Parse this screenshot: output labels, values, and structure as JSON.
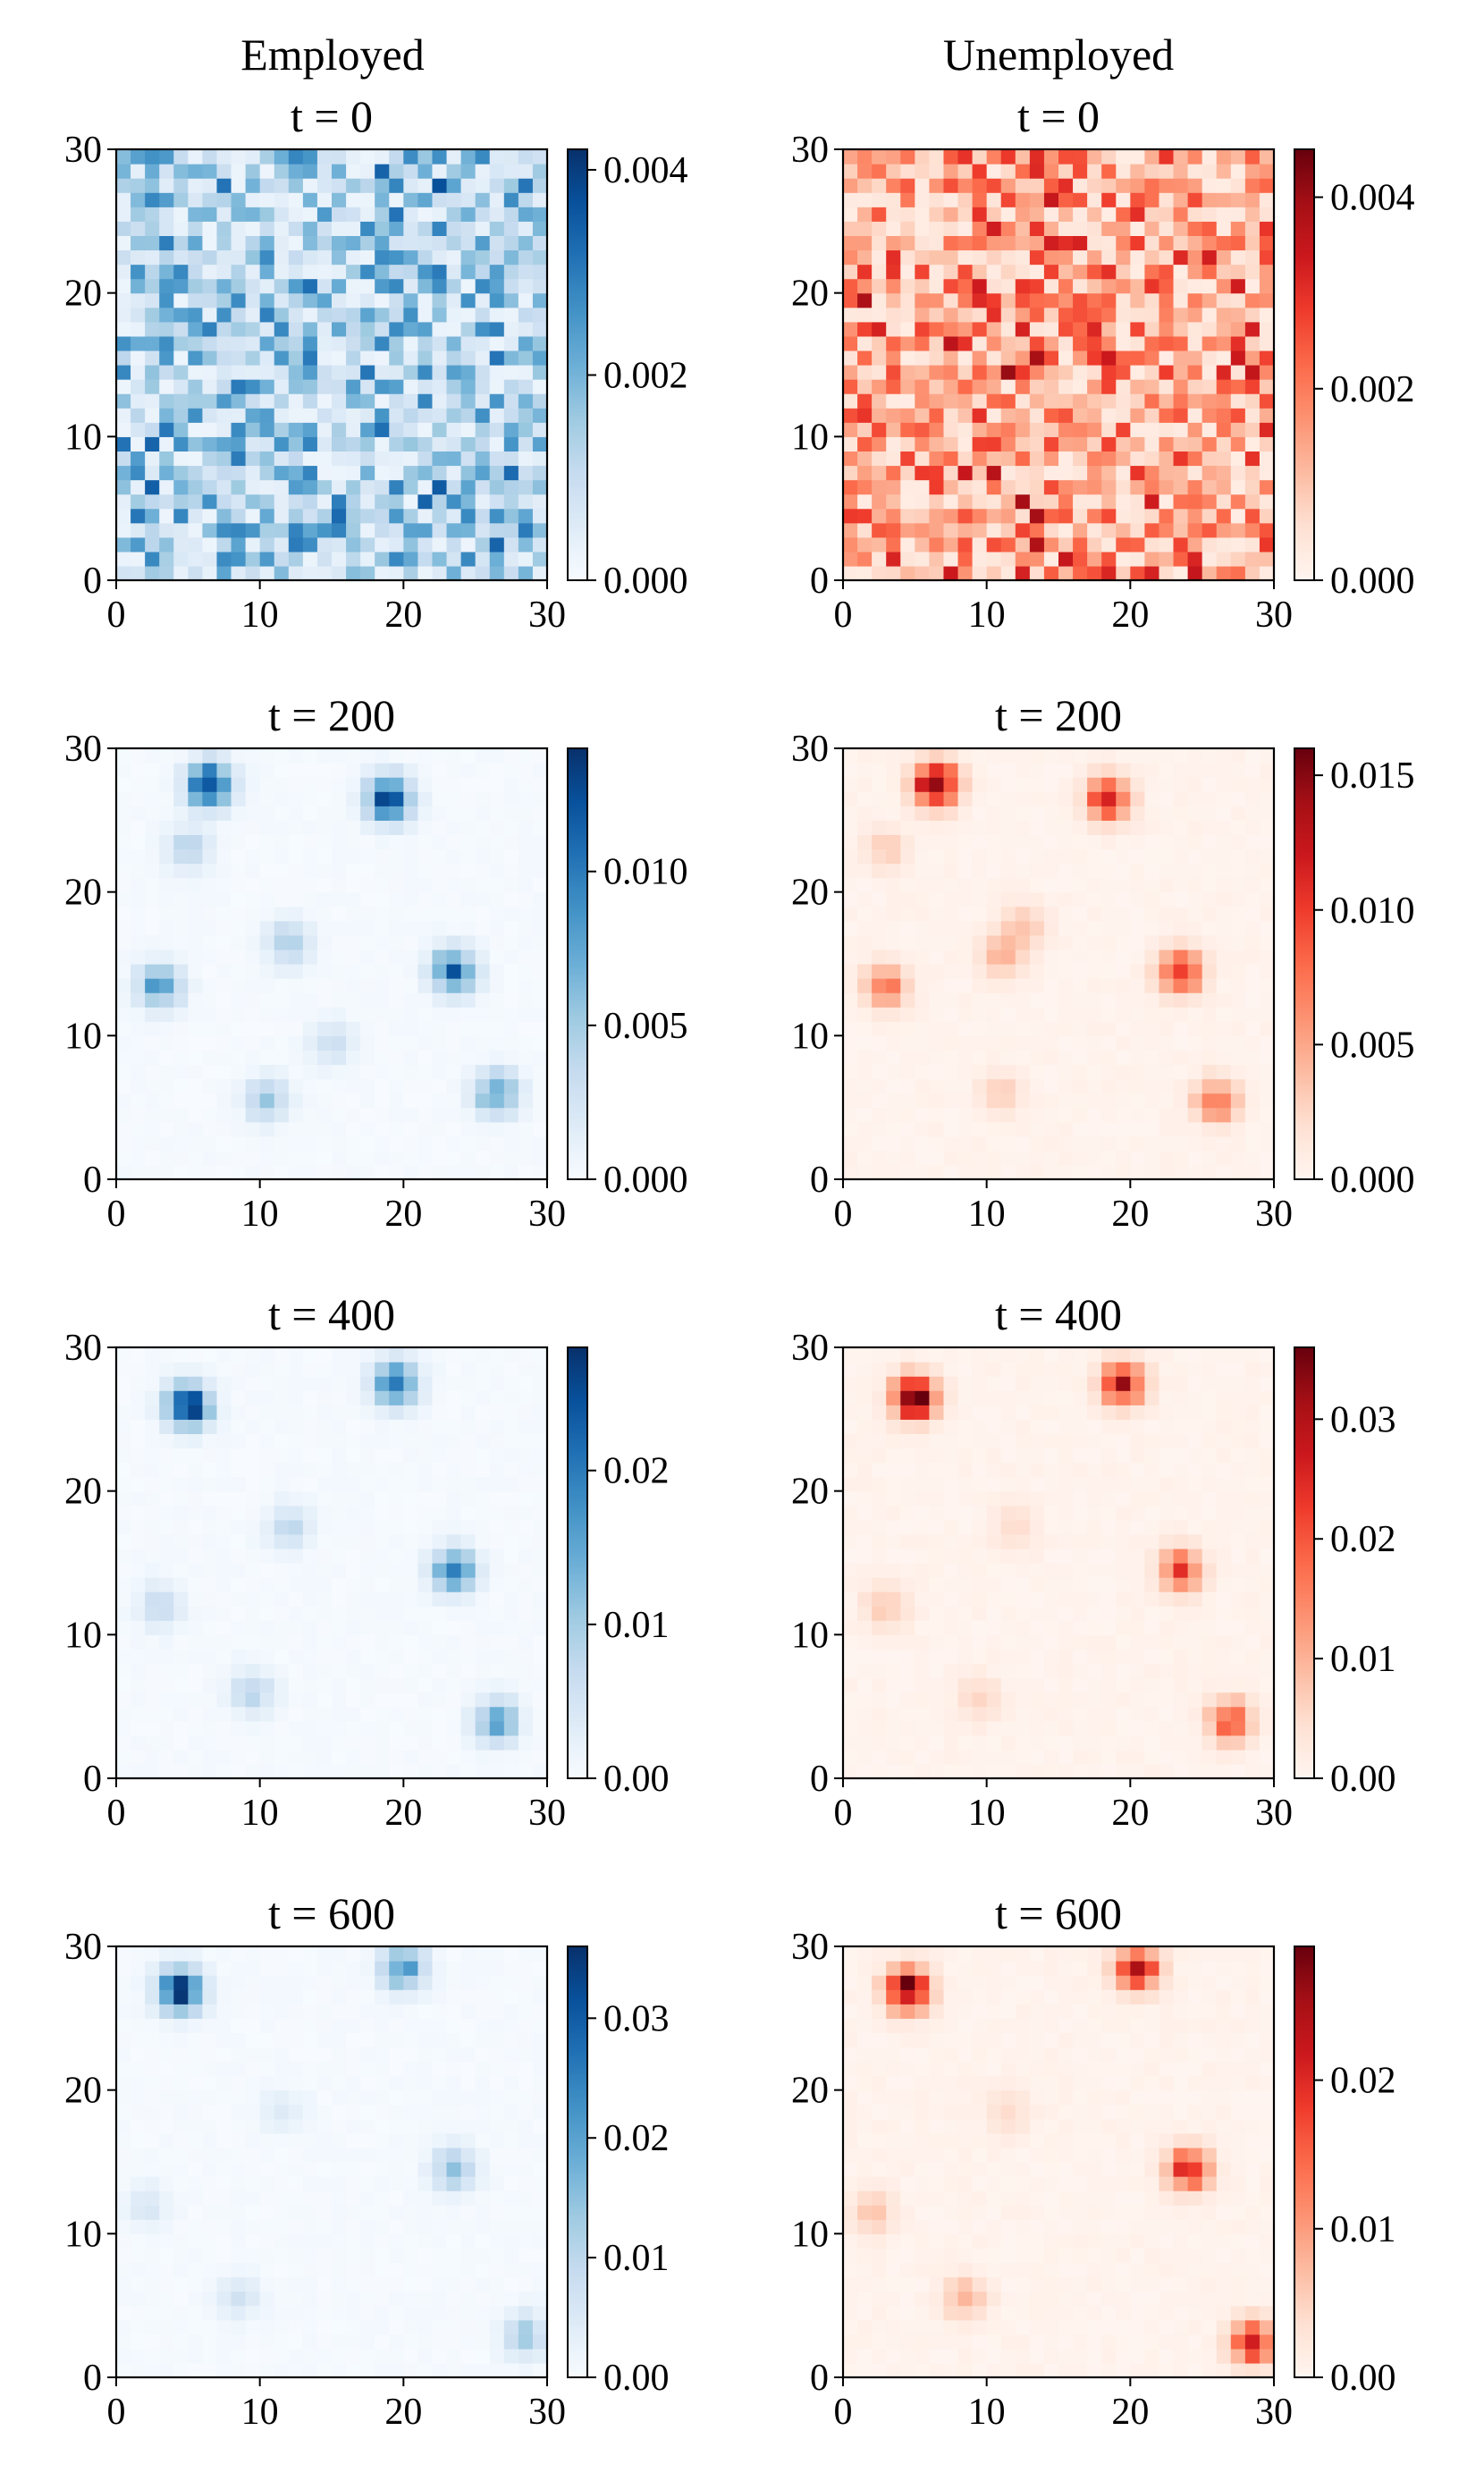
{
  "figure": {
    "column_titles": [
      "Employed",
      "Unemployed"
    ]
  },
  "chart_data": [
    {
      "type": "heatmap",
      "title": "Employed",
      "subtitle": "t = 0",
      "time": 0,
      "cmap": "Blues",
      "xlim": [
        0,
        30
      ],
      "ylim": [
        0,
        30
      ],
      "x_ticks": [
        0,
        10,
        20,
        30
      ],
      "y_ticks": [
        0,
        10,
        20,
        30
      ],
      "grid_size": 30,
      "colorbar": {
        "range": [
          0,
          0.0042
        ],
        "ticks": [
          0,
          0.002,
          0.004
        ],
        "tick_labels": [
          "0.000",
          "0.002",
          "0.004"
        ]
      },
      "pattern": "uniform-random",
      "clusters": []
    },
    {
      "type": "heatmap",
      "title": "Unemployed",
      "subtitle": "t = 0",
      "time": 0,
      "cmap": "Reds",
      "xlim": [
        0,
        30
      ],
      "ylim": [
        0,
        30
      ],
      "x_ticks": [
        0,
        10,
        20,
        30
      ],
      "y_ticks": [
        0,
        10,
        20,
        30
      ],
      "grid_size": 30,
      "colorbar": {
        "range": [
          0,
          0.0045
        ],
        "ticks": [
          0,
          0.002,
          0.004
        ],
        "tick_labels": [
          "0.000",
          "0.002",
          "0.004"
        ]
      },
      "pattern": "uniform-random",
      "clusters": []
    },
    {
      "type": "heatmap",
      "title": "",
      "subtitle": "t = 200",
      "time": 200,
      "cmap": "Blues",
      "xlim": [
        0,
        30
      ],
      "ylim": [
        0,
        30
      ],
      "x_ticks": [
        0,
        10,
        20,
        30
      ],
      "y_ticks": [
        0,
        10,
        20,
        30
      ],
      "grid_size": 30,
      "colorbar": {
        "range": [
          0,
          0.014
        ],
        "ticks": [
          0,
          0.005,
          0.01
        ],
        "tick_labels": [
          "0.000",
          "0.005",
          "0.010"
        ]
      },
      "pattern": "clusters",
      "clusters": [
        [
          6.5,
          27.5,
          0.014
        ],
        [
          19,
          26.5,
          0.014
        ],
        [
          23.5,
          14.5,
          0.011
        ],
        [
          3,
          13.5,
          0.008
        ],
        [
          26.5,
          6,
          0.008
        ],
        [
          10.5,
          5.5,
          0.005
        ],
        [
          12,
          16.5,
          0.005
        ],
        [
          5,
          23,
          0.004
        ],
        [
          15,
          9.5,
          0.003
        ]
      ]
    },
    {
      "type": "heatmap",
      "title": "",
      "subtitle": "t = 200",
      "time": 200,
      "cmap": "Reds",
      "xlim": [
        0,
        30
      ],
      "ylim": [
        0,
        30
      ],
      "x_ticks": [
        0,
        10,
        20,
        30
      ],
      "y_ticks": [
        0,
        10,
        20,
        30
      ],
      "grid_size": 30,
      "colorbar": {
        "range": [
          0,
          0.016
        ],
        "ticks": [
          0,
          0.005,
          0.01,
          0.015
        ],
        "tick_labels": [
          "0.000",
          "0.005",
          "0.010",
          "0.015"
        ]
      },
      "pattern": "clusters",
      "clusters": [
        [
          6.5,
          27.5,
          0.016
        ],
        [
          18.5,
          26.5,
          0.012
        ],
        [
          23.5,
          14.5,
          0.012
        ],
        [
          3,
          13.5,
          0.007
        ],
        [
          26,
          5.5,
          0.008
        ],
        [
          11,
          15.5,
          0.004
        ],
        [
          12.5,
          17.5,
          0.004
        ],
        [
          3,
          23,
          0.003
        ],
        [
          11,
          6,
          0.003
        ]
      ]
    },
    {
      "type": "heatmap",
      "title": "",
      "subtitle": "t = 400",
      "time": 400,
      "cmap": "Blues",
      "xlim": [
        0,
        30
      ],
      "ylim": [
        0,
        30
      ],
      "x_ticks": [
        0,
        10,
        20,
        30
      ],
      "y_ticks": [
        0,
        10,
        20,
        30
      ],
      "grid_size": 30,
      "colorbar": {
        "range": [
          0,
          0.028
        ],
        "ticks": [
          0,
          0.01,
          0.02
        ],
        "tick_labels": [
          "0.00",
          "0.01",
          "0.02"
        ]
      },
      "pattern": "clusters",
      "clusters": [
        [
          5,
          26,
          0.028
        ],
        [
          19.5,
          27.5,
          0.022
        ],
        [
          23.5,
          14.5,
          0.018
        ],
        [
          26.5,
          4,
          0.015
        ],
        [
          9.5,
          6,
          0.008
        ],
        [
          12,
          17.5,
          0.007
        ],
        [
          3,
          12,
          0.006
        ]
      ]
    },
    {
      "type": "heatmap",
      "title": "",
      "subtitle": "t = 400",
      "time": 400,
      "cmap": "Reds",
      "xlim": [
        0,
        30
      ],
      "ylim": [
        0,
        30
      ],
      "x_ticks": [
        0,
        10,
        20,
        30
      ],
      "y_ticks": [
        0,
        10,
        20,
        30
      ],
      "grid_size": 30,
      "colorbar": {
        "range": [
          0,
          0.036
        ],
        "ticks": [
          0,
          0.01,
          0.02,
          0.03
        ],
        "tick_labels": [
          "0.00",
          "0.01",
          "0.02",
          "0.03"
        ]
      },
      "pattern": "clusters",
      "clusters": [
        [
          5,
          26.5,
          0.036
        ],
        [
          19.5,
          27.5,
          0.028
        ],
        [
          23.5,
          14.5,
          0.022
        ],
        [
          27,
          4,
          0.02
        ],
        [
          9.5,
          5.5,
          0.006
        ],
        [
          12,
          17.5,
          0.005
        ],
        [
          3,
          12,
          0.008
        ]
      ]
    },
    {
      "type": "heatmap",
      "title": "",
      "subtitle": "t = 600",
      "time": 600,
      "cmap": "Blues",
      "xlim": [
        0,
        30
      ],
      "ylim": [
        0,
        30
      ],
      "x_ticks": [
        0,
        10,
        20,
        30
      ],
      "y_ticks": [
        0,
        10,
        20,
        30
      ],
      "grid_size": 30,
      "colorbar": {
        "range": [
          0,
          0.036
        ],
        "ticks": [
          0,
          0.01,
          0.02,
          0.03
        ],
        "tick_labels": [
          "0.00",
          "0.01",
          "0.02",
          "0.03"
        ]
      },
      "pattern": "clusters",
      "clusters": [
        [
          4.5,
          27,
          0.036
        ],
        [
          20,
          28.5,
          0.022
        ],
        [
          23.5,
          14.5,
          0.014
        ],
        [
          28.5,
          3,
          0.012
        ],
        [
          8.5,
          5.5,
          0.006
        ],
        [
          11.5,
          18.5,
          0.004
        ],
        [
          2,
          12,
          0.005
        ]
      ]
    },
    {
      "type": "heatmap",
      "title": "",
      "subtitle": "t = 600",
      "time": 600,
      "cmap": "Reds",
      "xlim": [
        0,
        30
      ],
      "ylim": [
        0,
        30
      ],
      "x_ticks": [
        0,
        10,
        20,
        30
      ],
      "y_ticks": [
        0,
        10,
        20,
        30
      ],
      "grid_size": 30,
      "colorbar": {
        "range": [
          0,
          0.029
        ],
        "ticks": [
          0,
          0.01,
          0.02
        ],
        "tick_labels": [
          "0.00",
          "0.01",
          "0.02"
        ]
      },
      "pattern": "clusters",
      "clusters": [
        [
          4.5,
          27,
          0.029
        ],
        [
          20.5,
          28.5,
          0.022
        ],
        [
          24,
          14.5,
          0.02
        ],
        [
          28.5,
          2.5,
          0.022
        ],
        [
          8.5,
          5.5,
          0.008
        ],
        [
          11.5,
          18.5,
          0.004
        ],
        [
          2,
          11.5,
          0.006
        ]
      ]
    }
  ]
}
